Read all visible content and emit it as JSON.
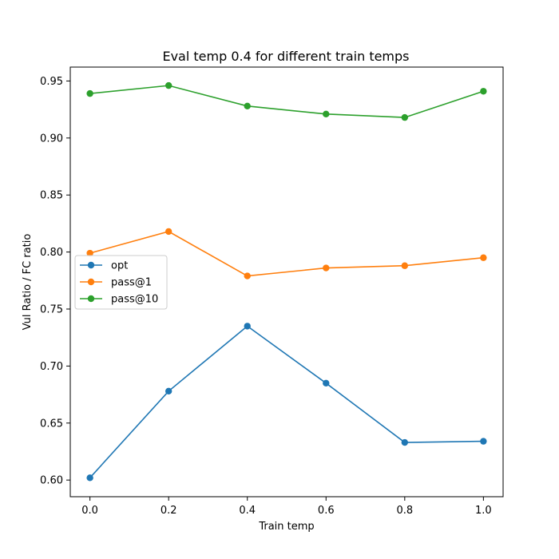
{
  "chart_data": {
    "type": "line",
    "title": "Eval temp 0.4 for different train temps",
    "xlabel": "Train temp",
    "ylabel": "Vul Ratio / FC ratio",
    "x": [
      0.0,
      0.2,
      0.4,
      0.6,
      0.8,
      1.0
    ],
    "xlim": [
      -0.05,
      1.05
    ],
    "ylim": [
      0.5854,
      0.9622
    ],
    "xticks": [
      0.0,
      0.2,
      0.4,
      0.6,
      0.8,
      1.0
    ],
    "xtick_labels": [
      "0.0",
      "0.2",
      "0.4",
      "0.6",
      "0.8",
      "1.0"
    ],
    "yticks": [
      0.6,
      0.65,
      0.7,
      0.75,
      0.8,
      0.85,
      0.9,
      0.95
    ],
    "ytick_labels": [
      "0.60",
      "0.65",
      "0.70",
      "0.75",
      "0.80",
      "0.85",
      "0.90",
      "0.95"
    ],
    "grid": false,
    "legend_position": "center-left",
    "series": [
      {
        "name": "opt",
        "color": "#1f77b4",
        "marker": "circle",
        "values": [
          0.602,
          0.678,
          0.735,
          0.685,
          0.633,
          0.634
        ]
      },
      {
        "name": "pass@1",
        "color": "#ff7f0e",
        "marker": "circle",
        "values": [
          0.799,
          0.818,
          0.779,
          0.786,
          0.788,
          0.795
        ]
      },
      {
        "name": "pass@10",
        "color": "#2ca02c",
        "marker": "circle",
        "values": [
          0.939,
          0.946,
          0.928,
          0.921,
          0.918,
          0.941
        ]
      }
    ]
  }
}
